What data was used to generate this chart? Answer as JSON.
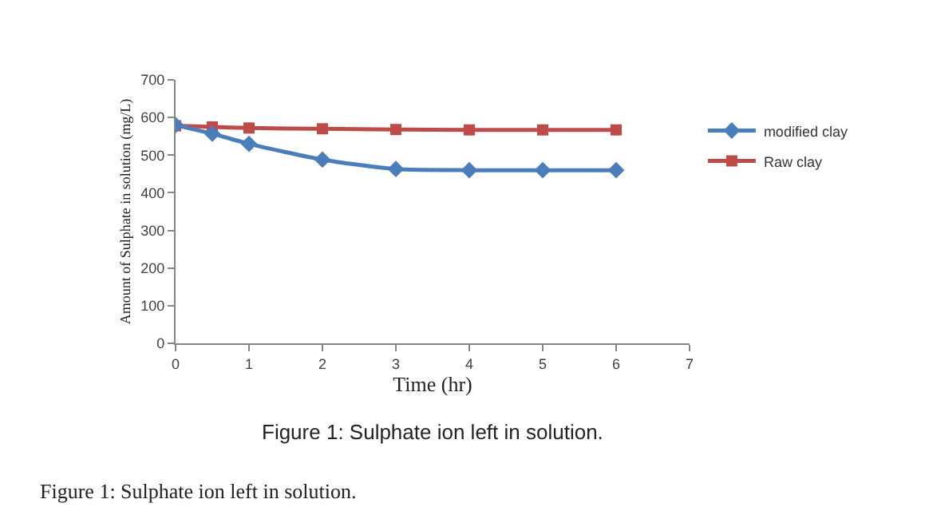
{
  "chart_data": {
    "type": "line",
    "x": [
      0,
      0.5,
      1,
      2,
      3,
      4,
      5,
      6
    ],
    "series": [
      {
        "name": "modified clay",
        "color": "#4a7ebb",
        "marker": "diamond",
        "values": [
          580,
          557,
          530,
          488,
          463,
          460,
          460,
          460
        ]
      },
      {
        "name": "Raw clay",
        "color": "#be4b48",
        "marker": "square",
        "values": [
          578,
          575,
          572,
          570,
          568,
          567,
          567,
          567
        ]
      }
    ],
    "xlim": [
      0,
      7
    ],
    "xticks": [
      0,
      1,
      2,
      3,
      4,
      5,
      6,
      7
    ],
    "ylim": [
      0,
      700
    ],
    "yticks": [
      0,
      100,
      200,
      300,
      400,
      500,
      600,
      700
    ],
    "xlabel": "Time (hr)",
    "ylabel": "Amount of Sulphate in solution (mg/L)",
    "grid": false,
    "legend": "right",
    "annotations": [
      "Figure 1: Sulphate ion left in solution.",
      "Figure 1: Sulphate ion left in solution."
    ]
  }
}
